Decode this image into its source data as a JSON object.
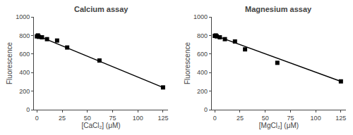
{
  "chart_data": [
    {
      "type": "scatter",
      "title": "Calcium assay",
      "xlabel": "[CaCl₂] (μM)",
      "ylabel": "Fluorescence",
      "series": [
        {
          "type": "line",
          "x": [
            0,
            125
          ],
          "values": [
            800,
            240
          ],
          "color": "black",
          "line_style": "solid"
        },
        {
          "type": "scatter",
          "x": [
            0,
            1,
            2,
            5,
            10,
            20,
            30,
            62,
            125
          ],
          "values": [
            790,
            800,
            785,
            780,
            760,
            745,
            670,
            530,
            240
          ],
          "color": "black",
          "marker": "square"
        }
      ],
      "xlim": [
        -3,
        130
      ],
      "ylim": [
        0,
        1000
      ],
      "xticks": [
        0,
        25,
        50,
        75,
        100,
        125
      ],
      "yticks": [
        0,
        200,
        400,
        600,
        800,
        1000
      ],
      "grid": false
    },
    {
      "type": "scatter",
      "title": "Magnesium assay",
      "xlabel": "[MgCl₂] (μM)",
      "ylabel": "Fluorescence",
      "series": [
        {
          "type": "line",
          "x": [
            0,
            125
          ],
          "values": [
            800,
            305
          ],
          "color": "black",
          "line_style": "solid"
        },
        {
          "type": "scatter",
          "x": [
            0,
            1,
            2,
            5,
            10,
            20,
            30,
            62,
            125
          ],
          "values": [
            795,
            800,
            790,
            780,
            760,
            735,
            650,
            505,
            305
          ],
          "color": "black",
          "marker": "square"
        }
      ],
      "xlim": [
        -3,
        130
      ],
      "ylim": [
        0,
        1000
      ],
      "xticks": [
        0,
        25,
        50,
        75,
        100,
        125
      ],
      "yticks": [
        0,
        200,
        400,
        600,
        800,
        1000
      ],
      "grid": false
    }
  ]
}
